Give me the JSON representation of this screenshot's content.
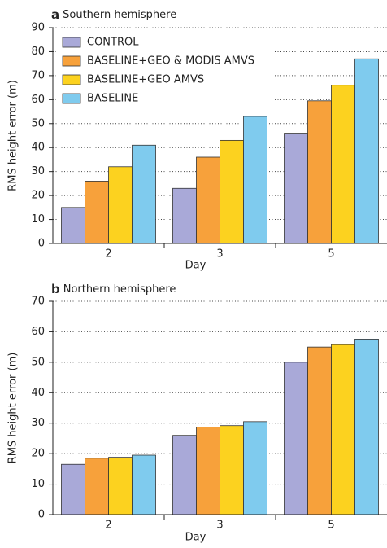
{
  "chart_data": [
    {
      "type": "bar",
      "panel_label": "a",
      "title": "Southern hemisphere",
      "ylabel": "RMS height error (m)",
      "xlabel": "Day",
      "categories": [
        "2",
        "3",
        "5"
      ],
      "series": [
        {
          "name": "CONTROL",
          "color": "#a9a9d8",
          "values": [
            15,
            23,
            46
          ]
        },
        {
          "name": "BASELINE+GEO & MODIS AMVS",
          "color": "#f7a13b",
          "values": [
            26,
            36,
            59.5
          ]
        },
        {
          "name": "BASELINE+GEO AMVS",
          "color": "#fcd21f",
          "values": [
            32,
            43,
            66
          ]
        },
        {
          "name": "BASELINE",
          "color": "#7fcbee",
          "values": [
            41,
            53,
            77
          ]
        }
      ],
      "ylim": [
        0,
        90
      ],
      "yticks": [
        0,
        10,
        20,
        30,
        40,
        50,
        60,
        70,
        80,
        90
      ],
      "grid": true
    },
    {
      "type": "bar",
      "panel_label": "b",
      "title": "Northern hemisphere",
      "ylabel": "RMS height error (m)",
      "xlabel": "Day",
      "categories": [
        "2",
        "3",
        "5"
      ],
      "series": [
        {
          "color": "#a9a9d8",
          "values": [
            16.5,
            26,
            50
          ]
        },
        {
          "color": "#f7a13b",
          "values": [
            18.5,
            28.7,
            55
          ]
        },
        {
          "color": "#fcd21f",
          "values": [
            18.8,
            29.2,
            55.8
          ]
        },
        {
          "color": "#7fcbee",
          "values": [
            19.5,
            30.5,
            57.6
          ]
        }
      ],
      "ylim": [
        0,
        70
      ],
      "yticks": [
        0,
        10,
        20,
        30,
        40,
        50,
        60,
        70
      ],
      "grid": true
    }
  ]
}
